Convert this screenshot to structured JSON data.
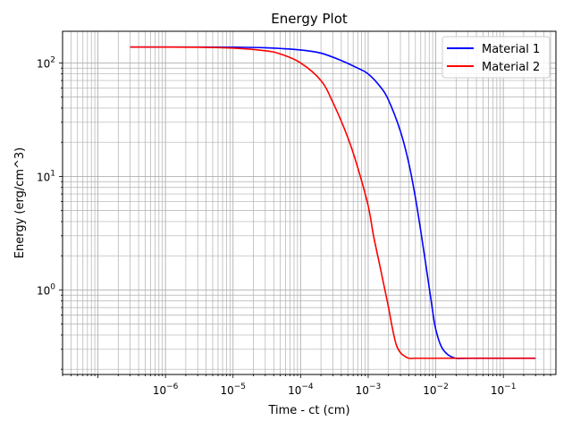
{
  "chart_data": {
    "type": "line",
    "title": "Energy Plot",
    "xlabel": "Time - ct (cm)",
    "ylabel": "Energy (erg/cm^3)",
    "x_scale": "log",
    "y_scale": "log",
    "xlim": [
      3e-08,
      0.6
    ],
    "ylim": [
      0.18,
      190
    ],
    "grid": "major-and-minor",
    "legend_position": "top-right",
    "x_ticks": [
      {
        "value": 1e-06,
        "base": "10",
        "exp": "−6"
      },
      {
        "value": 1e-05,
        "base": "10",
        "exp": "−5"
      },
      {
        "value": 0.0001,
        "base": "10",
        "exp": "−4"
      },
      {
        "value": 0.001,
        "base": "10",
        "exp": "−3"
      },
      {
        "value": 0.01,
        "base": "10",
        "exp": "−2"
      },
      {
        "value": 0.1,
        "base": "10",
        "exp": "−1"
      }
    ],
    "y_ticks": [
      {
        "value": 1,
        "base": "10",
        "exp": "0"
      },
      {
        "value": 10,
        "base": "10",
        "exp": "1"
      },
      {
        "value": 100,
        "base": "10",
        "exp": "2"
      }
    ],
    "series": [
      {
        "name": "Material 1",
        "color": "#0000ff",
        "x": [
          3e-07,
          1e-06,
          1e-05,
          3e-05,
          0.0001,
          0.0002,
          0.0004,
          0.0007,
          0.001,
          0.0015,
          0.002,
          0.003,
          0.004,
          0.005,
          0.006,
          0.007,
          0.008,
          0.009,
          0.01,
          0.012,
          0.015,
          0.02,
          0.03,
          0.1,
          0.3
        ],
        "y": [
          138,
          138,
          137.5,
          136,
          130,
          122,
          105,
          90,
          80,
          62,
          47,
          25,
          13,
          6.5,
          3.3,
          1.8,
          1.05,
          0.65,
          0.45,
          0.32,
          0.27,
          0.25,
          0.25,
          0.25,
          0.25
        ]
      },
      {
        "name": "Material 2",
        "color": "#ff0000",
        "x": [
          3e-07,
          1e-06,
          3e-06,
          1e-05,
          3e-05,
          5e-05,
          0.0001,
          0.0002,
          0.0003,
          0.0005,
          0.0007,
          0.001,
          0.0012,
          0.0015,
          0.0018,
          0.002,
          0.0023,
          0.0026,
          0.003,
          0.0035,
          0.004,
          0.005,
          0.01,
          0.1,
          0.3
        ],
        "y": [
          138,
          138,
          137.5,
          135,
          128,
          120,
          100,
          70,
          45,
          22,
          12,
          5.5,
          3.0,
          1.6,
          0.95,
          0.7,
          0.45,
          0.33,
          0.28,
          0.26,
          0.25,
          0.25,
          0.25,
          0.25,
          0.25
        ]
      }
    ]
  }
}
